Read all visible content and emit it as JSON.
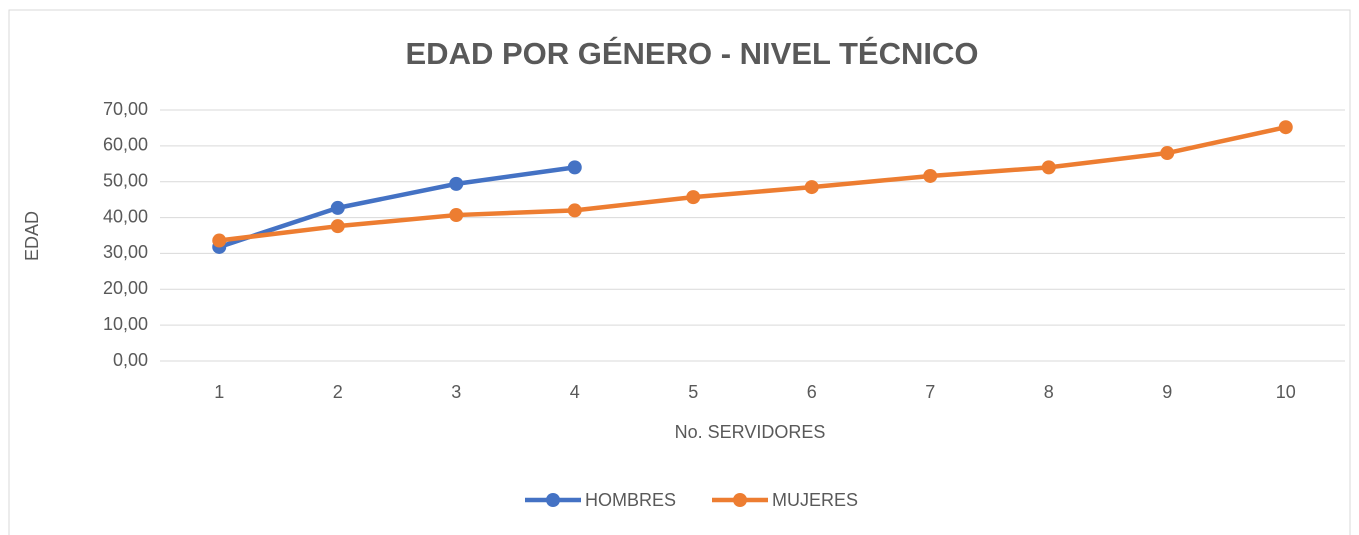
{
  "chart_data": {
    "type": "line",
    "title": "EDAD POR GÉNERO - NIVEL TÉCNICO",
    "x_label": "No. SERVIDORES",
    "y_label": "EDAD",
    "categories": [
      "1",
      "2",
      "3",
      "4",
      "5",
      "6",
      "7",
      "8",
      "9",
      "10"
    ],
    "series": [
      {
        "name": "HOMBRES",
        "color": "#4472c4",
        "values": [
          31.8,
          42.7,
          49.4,
          54.0,
          null,
          null,
          null,
          null,
          null,
          null
        ]
      },
      {
        "name": "MUJERES",
        "color": "#ed7d31",
        "values": [
          33.6,
          37.6,
          40.7,
          42.0,
          45.7,
          48.5,
          51.6,
          54.0,
          58.0,
          65.2
        ]
      }
    ],
    "ylim": [
      0,
      70
    ],
    "yticks": [
      {
        "value": 0,
        "label": "0,00"
      },
      {
        "value": 10,
        "label": "10,00"
      },
      {
        "value": 20,
        "label": "20,00"
      },
      {
        "value": 30,
        "label": "30,00"
      },
      {
        "value": 40,
        "label": "40,00"
      },
      {
        "value": 50,
        "label": "50,00"
      },
      {
        "value": 60,
        "label": "60,00"
      },
      {
        "value": 70,
        "label": "70,00"
      }
    ],
    "grid": true,
    "legend": "bottom"
  }
}
